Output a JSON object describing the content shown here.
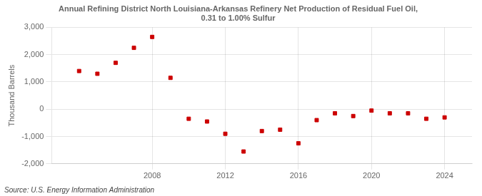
{
  "chart_data": {
    "type": "scatter",
    "title": "Annual Refining District North Louisiana-Arkansas Refinery Net Production of Residual Fuel Oil,\n0.31 to 1.00% Sulfur",
    "ylabel": "Thousand Barrels",
    "annotations": [
      "Source: U.S. Energy Information Administration"
    ],
    "x": [
      2004,
      2005,
      2006,
      2007,
      2008,
      2009,
      2010,
      2011,
      2012,
      2013,
      2014,
      2015,
      2016,
      2017,
      2018,
      2019,
      2020,
      2021,
      2022,
      2023,
      2024
    ],
    "values": [
      1400,
      1300,
      1700,
      2250,
      2650,
      1150,
      -350,
      -450,
      -900,
      -1550,
      -800,
      -750,
      -1250,
      -400,
      -150,
      -250,
      -50,
      -150,
      -150,
      -350,
      -300
    ],
    "color": "#cc0000",
    "marker": "square",
    "xlim": [
      2002.5,
      2025.5
    ],
    "xticks": [
      2008,
      2012,
      2016,
      2020,
      2024
    ],
    "ylim": [
      -2000,
      3000
    ],
    "yticks": [
      {
        "value": -2000,
        "label": "-2,000"
      },
      {
        "value": -1000,
        "label": "-1,000"
      },
      0,
      {
        "value": 1000,
        "label": "1,000"
      },
      {
        "value": 2000,
        "label": "2,000"
      },
      {
        "value": 3000,
        "label": "3,000"
      }
    ],
    "grid": true
  }
}
